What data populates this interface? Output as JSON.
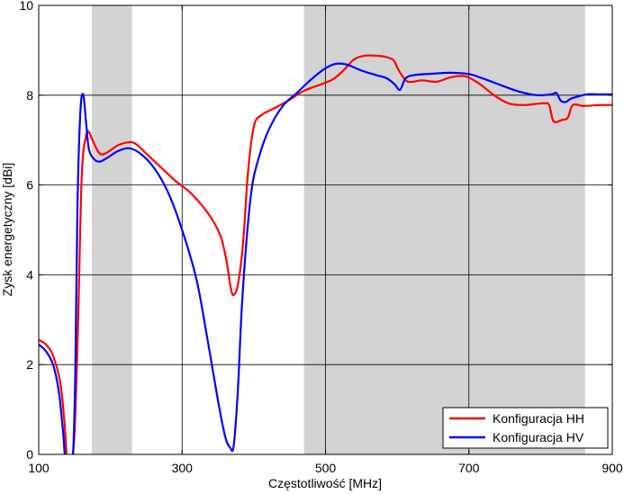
{
  "chart_data": {
    "type": "line",
    "title": "",
    "xlabel": "Częstotliwość [MHz]",
    "ylabel": "Zysk energetyczny [dBi]",
    "xlim": [
      100,
      900
    ],
    "ylim": [
      0,
      10
    ],
    "xticks": [
      100,
      300,
      500,
      700,
      900
    ],
    "yticks": [
      0,
      2,
      4,
      6,
      8,
      10
    ],
    "grid": true,
    "legend_position": "bottom-right",
    "shaded_bands": [
      {
        "from": 174,
        "to": 230
      },
      {
        "from": 470,
        "to": 862
      }
    ],
    "band_color": "#d3d3d3",
    "series": [
      {
        "name": "Konfiguracja HH",
        "color": "#ff0000",
        "points": [
          [
            100,
            2.55
          ],
          [
            110,
            2.45
          ],
          [
            120,
            2.2
          ],
          [
            130,
            1.6
          ],
          [
            136,
            0.7
          ],
          [
            140,
            -0.2
          ],
          [
            145,
            -0.2
          ],
          [
            150,
            0.5
          ],
          [
            155,
            3.0
          ],
          [
            160,
            6.2
          ],
          [
            166,
            7.1
          ],
          [
            170,
            7.18
          ],
          [
            175,
            7.0
          ],
          [
            185,
            6.7
          ],
          [
            195,
            6.72
          ],
          [
            210,
            6.88
          ],
          [
            225,
            6.95
          ],
          [
            235,
            6.92
          ],
          [
            250,
            6.7
          ],
          [
            270,
            6.4
          ],
          [
            290,
            6.1
          ],
          [
            310,
            5.85
          ],
          [
            330,
            5.5
          ],
          [
            345,
            5.15
          ],
          [
            355,
            4.8
          ],
          [
            362,
            4.3
          ],
          [
            368,
            3.7
          ],
          [
            372,
            3.55
          ],
          [
            378,
            3.8
          ],
          [
            385,
            4.7
          ],
          [
            392,
            6.3
          ],
          [
            400,
            7.3
          ],
          [
            410,
            7.55
          ],
          [
            430,
            7.72
          ],
          [
            450,
            7.9
          ],
          [
            470,
            8.1
          ],
          [
            490,
            8.22
          ],
          [
            510,
            8.35
          ],
          [
            525,
            8.55
          ],
          [
            540,
            8.8
          ],
          [
            555,
            8.88
          ],
          [
            570,
            8.88
          ],
          [
            585,
            8.85
          ],
          [
            595,
            8.78
          ],
          [
            600,
            8.62
          ],
          [
            605,
            8.48
          ],
          [
            615,
            8.3
          ],
          [
            635,
            8.33
          ],
          [
            655,
            8.3
          ],
          [
            675,
            8.4
          ],
          [
            695,
            8.42
          ],
          [
            715,
            8.25
          ],
          [
            735,
            8.0
          ],
          [
            755,
            7.82
          ],
          [
            775,
            7.78
          ],
          [
            790,
            7.8
          ],
          [
            805,
            7.82
          ],
          [
            812,
            7.78
          ],
          [
            818,
            7.42
          ],
          [
            830,
            7.45
          ],
          [
            838,
            7.5
          ],
          [
            845,
            7.78
          ],
          [
            860,
            7.76
          ],
          [
            880,
            7.78
          ],
          [
            900,
            7.78
          ]
        ]
      },
      {
        "name": "Konfiguracja HV",
        "color": "#0000ff",
        "points": [
          [
            100,
            2.45
          ],
          [
            110,
            2.3
          ],
          [
            120,
            2.0
          ],
          [
            128,
            1.4
          ],
          [
            134,
            0.5
          ],
          [
            138,
            -0.2
          ],
          [
            147,
            -0.2
          ],
          [
            151,
            1.8
          ],
          [
            154,
            5.5
          ],
          [
            158,
            7.6
          ],
          [
            162,
            8.02
          ],
          [
            166,
            7.4
          ],
          [
            170,
            6.8
          ],
          [
            177,
            6.58
          ],
          [
            185,
            6.52
          ],
          [
            195,
            6.6
          ],
          [
            210,
            6.75
          ],
          [
            225,
            6.82
          ],
          [
            240,
            6.72
          ],
          [
            260,
            6.4
          ],
          [
            280,
            5.85
          ],
          [
            300,
            5.0
          ],
          [
            320,
            3.9
          ],
          [
            335,
            2.6
          ],
          [
            350,
            1.2
          ],
          [
            360,
            0.4
          ],
          [
            367,
            0.15
          ],
          [
            372,
            0.2
          ],
          [
            378,
            1.5
          ],
          [
            383,
            3.2
          ],
          [
            390,
            4.8
          ],
          [
            397,
            5.9
          ],
          [
            405,
            6.5
          ],
          [
            420,
            7.2
          ],
          [
            440,
            7.75
          ],
          [
            460,
            8.05
          ],
          [
            480,
            8.35
          ],
          [
            500,
            8.6
          ],
          [
            515,
            8.7
          ],
          [
            530,
            8.68
          ],
          [
            550,
            8.55
          ],
          [
            570,
            8.45
          ],
          [
            585,
            8.38
          ],
          [
            596,
            8.25
          ],
          [
            604,
            8.12
          ],
          [
            612,
            8.38
          ],
          [
            625,
            8.45
          ],
          [
            650,
            8.48
          ],
          [
            675,
            8.5
          ],
          [
            700,
            8.47
          ],
          [
            720,
            8.37
          ],
          [
            745,
            8.22
          ],
          [
            770,
            8.08
          ],
          [
            795,
            8.0
          ],
          [
            815,
            8.02
          ],
          [
            822,
            8.05
          ],
          [
            828,
            7.88
          ],
          [
            835,
            7.85
          ],
          [
            842,
            7.92
          ],
          [
            852,
            7.97
          ],
          [
            865,
            8.02
          ],
          [
            880,
            8.02
          ],
          [
            900,
            8.02
          ]
        ]
      }
    ]
  }
}
